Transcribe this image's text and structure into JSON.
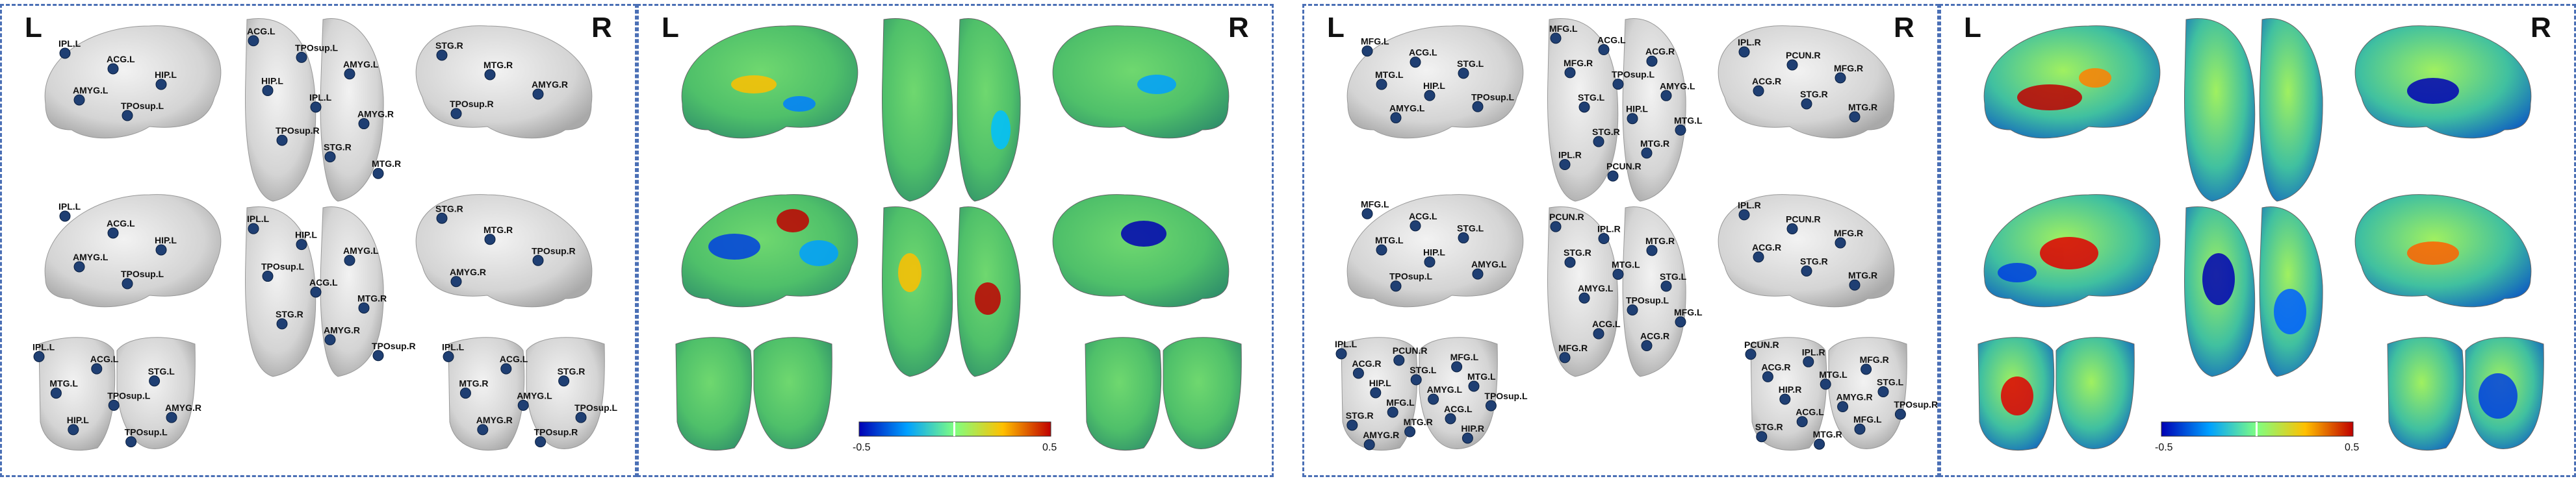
{
  "hemispheres": {
    "left": "L",
    "right": "R"
  },
  "colormap_ticks": {
    "min": "-0.5",
    "max": "0.5"
  },
  "panel1": {
    "regions_left_lateral": [
      "IPL.L",
      "ACG.L",
      "HIP.L",
      "AMYG.L",
      "TPOsup.L"
    ],
    "regions_right_lateral": [
      "STG.R",
      "MTG.R",
      "AMYG.R",
      "TPOsup.R"
    ],
    "regions_top": [
      "ACG.L",
      "TPOsup.L",
      "AMYG.L",
      "HIP.L",
      "IPL.L",
      "AMYG.R",
      "TPOsup.R",
      "STG.R",
      "MTG.R"
    ],
    "regions_left_medial": [
      "IPL.L",
      "ACG.L",
      "HIP.L",
      "AMYG.L",
      "TPOsup.L"
    ],
    "regions_bottom": [
      "IPL.L",
      "HIP.L",
      "AMYG.L",
      "TPOsup.L",
      "ACG.L",
      "MTG.R",
      "STG.R",
      "AMYG.R",
      "TPOsup.R"
    ],
    "regions_right_medial": [
      "STG.R",
      "MTG.R",
      "TPOsup.R",
      "AMYG.R"
    ],
    "regions_back": [
      "IPL.L",
      "ACG.L",
      "STG.L",
      "MTG.L",
      "TPOsup.L",
      "AMYG.R",
      "HIP.L",
      "TPOsup.L"
    ],
    "regions_front": [
      "IPL.L",
      "ACG.L",
      "STG.R",
      "MTG.R",
      "AMYG.L",
      "TPOsup.L",
      "AMYG.R",
      "TPOsup.R"
    ]
  },
  "panel3": {
    "regions_left_lateral": [
      "MFG.L",
      "ACG.L",
      "STG.L",
      "MTG.L",
      "HIP.L",
      "TPOsup.L",
      "AMYG.L"
    ],
    "regions_right_lateral": [
      "IPL.R",
      "PCUN.R",
      "MFG.R",
      "ACG.R",
      "STG.R",
      "MTG.R"
    ],
    "regions_top": [
      "MFG.L",
      "ACG.L",
      "ACG.R",
      "MFG.R",
      "TPOsup.L",
      "AMYG.L",
      "STG.L",
      "HIP.L",
      "MTG.L",
      "STG.R",
      "MTG.R",
      "IPL.R",
      "PCUN.R"
    ],
    "regions_left_medial": [
      "MFG.L",
      "ACG.L",
      "STG.L",
      "MTG.L",
      "HIP.L",
      "AMYG.L",
      "TPOsup.L"
    ],
    "regions_bottom": [
      "PCUN.R",
      "IPL.R",
      "MTG.R",
      "STG.R",
      "MTG.L",
      "STG.L",
      "AMYG.L",
      "TPOsup.L",
      "MFG.L",
      "ACG.L",
      "ACG.R",
      "MFG.R"
    ],
    "regions_right_medial": [
      "IPL.R",
      "PCUN.R",
      "MFG.R",
      "ACG.R",
      "STG.R",
      "MTG.R"
    ],
    "regions_back": [
      "IPL.L",
      "PCUN.R",
      "MFG.L",
      "ACG.R",
      "STG.L",
      "MTG.L",
      "HIP.L",
      "AMYG.L",
      "TPOsup.L",
      "MFG.L",
      "ACG.L",
      "STG.R",
      "MTG.R",
      "HIP.R",
      "AMYG.R"
    ],
    "regions_front": [
      "PCUN.R",
      "IPL.R",
      "MFG.R",
      "ACG.R",
      "MTG.L",
      "STG.L",
      "HIP.R",
      "AMYG.R",
      "TPOsup.R",
      "ACG.L",
      "MFG.L",
      "STG.R",
      "MTG.R"
    ]
  },
  "colors": {
    "frame": "#4a6fb5",
    "node": "#1f3f73",
    "brain_gray": "#d9d9d9"
  }
}
